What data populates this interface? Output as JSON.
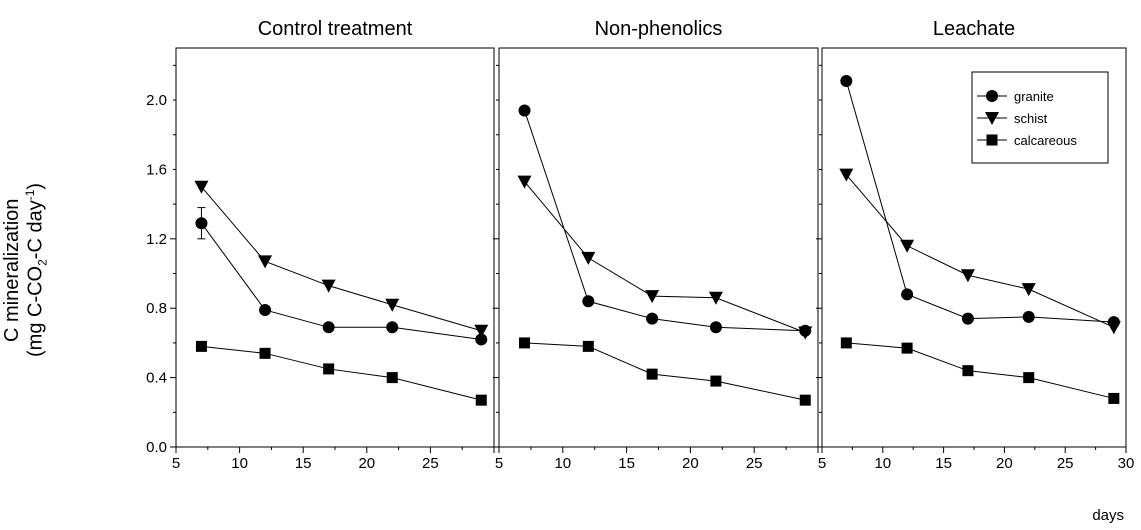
{
  "y_axis_label": {
    "line1": "C mineralization",
    "line2": "(mg C-CO",
    "sub": "2",
    "line3": "-C day",
    "sup": "-1",
    "close": ")"
  },
  "x_axis_label": "days",
  "colors": {
    "ink": "#000000",
    "background": "#ffffff"
  },
  "chart_data": [
    {
      "type": "line",
      "title": "Control treatment",
      "xlim": [
        5,
        30
      ],
      "ylim": [
        0.0,
        2.3
      ],
      "x_ticks": [
        5,
        10,
        15,
        20,
        25
      ],
      "y_ticks": [
        "0.0",
        "0.4",
        "0.8",
        "1.2",
        "1.6",
        "2.0"
      ],
      "x": [
        7,
        12,
        17,
        22,
        29
      ],
      "series": [
        {
          "name": "granite",
          "marker": "circle",
          "values": [
            1.29,
            0.79,
            0.69,
            0.69,
            0.62
          ],
          "error": [
            0.09,
            0,
            0,
            0,
            0
          ]
        },
        {
          "name": "schist",
          "marker": "triangle-down",
          "values": [
            1.5,
            1.07,
            0.93,
            0.82,
            0.67
          ]
        },
        {
          "name": "calcareous",
          "marker": "square",
          "values": [
            0.58,
            0.54,
            0.45,
            0.4,
            0.27
          ]
        }
      ]
    },
    {
      "type": "line",
      "title": "Non-phenolics",
      "xlim": [
        5,
        30
      ],
      "ylim": [
        0.0,
        2.3
      ],
      "x_ticks": [
        5,
        10,
        15,
        20,
        25
      ],
      "y_ticks": [],
      "x": [
        7,
        12,
        17,
        22,
        29
      ],
      "series": [
        {
          "name": "granite",
          "marker": "circle",
          "values": [
            1.94,
            0.84,
            0.74,
            0.69,
            0.67
          ]
        },
        {
          "name": "schist",
          "marker": "triangle-down",
          "values": [
            1.53,
            1.09,
            0.87,
            0.86,
            0.66
          ]
        },
        {
          "name": "calcareous",
          "marker": "square",
          "values": [
            0.6,
            0.58,
            0.42,
            0.38,
            0.27
          ]
        }
      ]
    },
    {
      "type": "line",
      "title": "Leachate",
      "xlim": [
        5,
        30
      ],
      "ylim": [
        0.0,
        2.3
      ],
      "x_ticks": [
        5,
        10,
        15,
        20,
        25,
        30
      ],
      "y_ticks": [],
      "legend": "top-right",
      "x": [
        7,
        12,
        17,
        22,
        29
      ],
      "series": [
        {
          "name": "granite",
          "marker": "circle",
          "values": [
            2.11,
            0.88,
            0.74,
            0.75,
            0.72
          ]
        },
        {
          "name": "schist",
          "marker": "triangle-down",
          "values": [
            1.57,
            1.16,
            0.99,
            0.91,
            0.69
          ]
        },
        {
          "name": "calcareous",
          "marker": "square",
          "values": [
            0.6,
            0.57,
            0.44,
            0.4,
            0.28
          ]
        }
      ]
    }
  ]
}
